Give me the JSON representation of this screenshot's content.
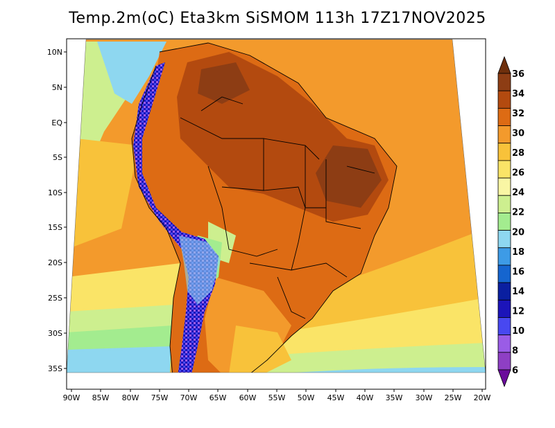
{
  "title": "Temp.2m(oC) Eta3km SiSMOM 113h 17Z17NOV2025",
  "lat_labels": [
    "10N",
    "5N",
    "EQ",
    "5S",
    "10S",
    "15S",
    "20S",
    "25S",
    "30S",
    "35S"
  ],
  "lon_labels": [
    "90W",
    "85W",
    "80W",
    "75W",
    "70W",
    "65W",
    "60W",
    "55W",
    "50W",
    "45W",
    "40W",
    "35W",
    "30W",
    "25W",
    "20W"
  ],
  "colorbar": {
    "ticks": [
      "36",
      "34",
      "32",
      "30",
      "28",
      "26",
      "24",
      "22",
      "20",
      "18",
      "16",
      "14",
      "12",
      "10",
      "8",
      "6"
    ],
    "colors_top_to_bottom": [
      "#6e2f0c",
      "#8d3d14",
      "#b34a0f",
      "#dd6b14",
      "#f39a2c",
      "#f8c23a",
      "#fae467",
      "#f9f6a4",
      "#cdef8f",
      "#a3ec8f",
      "#8ed7f0",
      "#3d9be6",
      "#1565cf",
      "#0a1fa0",
      "#1c14b9",
      "#4848f0",
      "#9a5ce6",
      "#8e3fc4",
      "#6a0a9b"
    ]
  },
  "field_colors": {
    "ocean_warm": "#f8c23a",
    "ocean_mid": "#fae467",
    "ocean_cool": "#cdef8f",
    "ocean_cold": "#8ed7f0",
    "land_hot": "#dd6b14",
    "land_very_hot": "#8d3d14",
    "andes_cold": "#1c14b9"
  }
}
